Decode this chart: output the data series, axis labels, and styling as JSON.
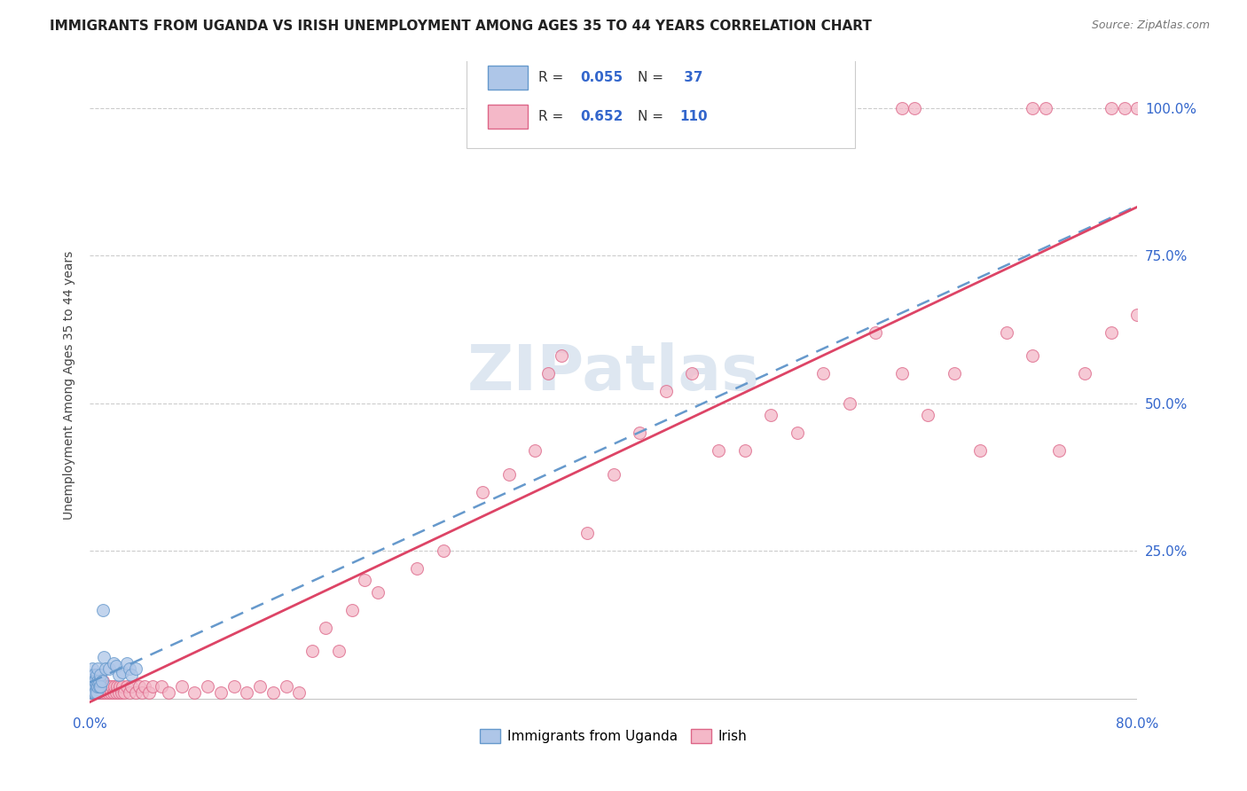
{
  "title": "IMMIGRANTS FROM UGANDA VS IRISH UNEMPLOYMENT AMONG AGES 35 TO 44 YEARS CORRELATION CHART",
  "source": "Source: ZipAtlas.com",
  "ylabel": "Unemployment Among Ages 35 to 44 years",
  "xlim": [
    0.0,
    0.8
  ],
  "ylim": [
    -0.02,
    1.08
  ],
  "uganda_color": "#aec6e8",
  "irish_color": "#f4b8c8",
  "uganda_edge": "#6699cc",
  "irish_edge": "#dd6688",
  "trendline_uganda_color": "#6699cc",
  "trendline_irish_color": "#dd4466",
  "background_color": "#ffffff",
  "watermark_color": "#c8d8e8",
  "grid_color": "#cccccc",
  "axis_label_color": "#3366cc",
  "title_color": "#222222",
  "source_color": "#777777",
  "scatter_size": 100,
  "scatter_alpha": 0.75,
  "scatter_lw": 0.8
}
